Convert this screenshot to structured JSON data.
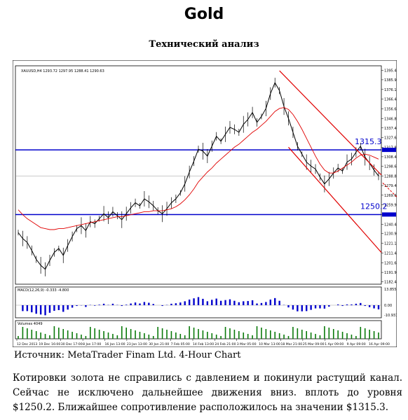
{
  "page": {
    "title": "Gold",
    "subtitle": "Технический анализ",
    "source": "Источник: MetaTrader Finam Ltd. 4-Hour Chart",
    "comment": "Котировки золота не справились с давлением и покинули растущий канал. Сейчас не исключено дальнейшее движения вниз. вплоть до уровня $1250.2. Ближайшее сопротивление расположилось на значении $1315.3."
  },
  "chart_data": {
    "type": "line",
    "symbol_header": "XAUUSD,H4  1293.72 1297.95 1288.41 1290.63",
    "x_ticks": [
      "12 Dec 2013",
      "19 Dec 16:00",
      "30 Dec 17:00",
      "8 Jan 17:00",
      "16 Jan 13:00",
      "23 Jan 13:00",
      "30 Jan 21:00",
      "7 Feb 05:00",
      "14 Feb 13:00",
      "24 Feb 21:00",
      "3 Mar 05:00",
      "10 Mar 13:00",
      "18 Mar 21:00",
      "25 Mar 09:00",
      "1 Apr 09:00",
      "9 Apr 09:00",
      "16 Apr 09:00"
    ],
    "y_ticks": [
      1395.4,
      1385.95,
      1376.15,
      1366.4,
      1356.65,
      1346.85,
      1337.4,
      1327.6,
      1317.8,
      1308.4,
      1298.65,
      1288.85,
      1279.4,
      1269.65,
      1259.9,
      1250.2,
      1240.4,
      1230.95,
      1221.15,
      1211.4,
      1201.6,
      1191.9,
      1182.4
    ],
    "ylim": [
      1180,
      1400
    ],
    "close": [
      1232,
      1226,
      1222,
      1214,
      1205,
      1199,
      1195,
      1204,
      1212,
      1216,
      1209,
      1219,
      1228,
      1236,
      1239,
      1234,
      1243,
      1241,
      1246,
      1251,
      1247,
      1253,
      1249,
      1245,
      1251,
      1257,
      1262,
      1259,
      1266,
      1263,
      1259,
      1254,
      1251,
      1256,
      1262,
      1266,
      1272,
      1281,
      1293,
      1304,
      1316,
      1314,
      1309,
      1319,
      1329,
      1324,
      1331,
      1338,
      1336,
      1333,
      1341,
      1346,
      1353,
      1343,
      1349,
      1357,
      1372,
      1383,
      1375,
      1359,
      1347,
      1333,
      1319,
      1311,
      1303,
      1299,
      1296,
      1288,
      1281,
      1286,
      1292,
      1297,
      1294,
      1303,
      1306,
      1313,
      1319,
      1308,
      1302,
      1295,
      1289
    ],
    "moving_average": [
      1255,
      1250,
      1246,
      1243,
      1240,
      1237,
      1236,
      1235,
      1235,
      1236,
      1236,
      1237,
      1238,
      1239,
      1240,
      1241,
      1242,
      1243,
      1244,
      1245,
      1246,
      1247,
      1248,
      1248,
      1249,
      1250,
      1251,
      1252,
      1253,
      1253,
      1254,
      1254,
      1254,
      1255,
      1256,
      1258,
      1261,
      1265,
      1270,
      1276,
      1283,
      1288,
      1293,
      1297,
      1302,
      1306,
      1310,
      1314,
      1318,
      1321,
      1325,
      1329,
      1333,
      1336,
      1340,
      1344,
      1349,
      1354,
      1357,
      1358,
      1356,
      1351,
      1344,
      1336,
      1327,
      1318,
      1309,
      1301,
      1295,
      1292,
      1292,
      1294,
      1297,
      1300,
      1303,
      1307,
      1310,
      1311,
      1310,
      1308,
      1306
    ],
    "resistance": {
      "value": 1315.3,
      "label": "1315.3"
    },
    "support": {
      "value": 1250.2,
      "label": "1250.2"
    },
    "panel_labels": {
      "macd": "MACD(12,26,9)  -0.333  -4.800",
      "volume": "Volumes 4049"
    },
    "macd_ticks": [
      "13.855",
      "0.00",
      "-10.931"
    ],
    "colors": {
      "price": "#000000",
      "moving_average": "#e00000",
      "levels": "#0000cc",
      "channel": "#e00000",
      "macd": "#0000cc"
    }
  }
}
